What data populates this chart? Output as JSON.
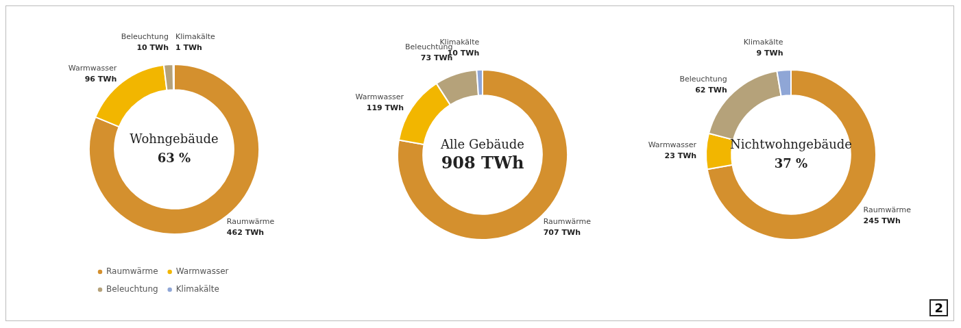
{
  "chart_data": [
    {
      "type": "donut",
      "title": "Wohngebäude",
      "subtitle": "63 %",
      "categories": [
        "Raumwärme",
        "Warmwasser",
        "Beleuchtung",
        "Klimakälte"
      ],
      "values": [
        462,
        96,
        10,
        1
      ],
      "value_labels": [
        "462 TWh",
        "96 TWh",
        "10 TWh",
        "1 TWh"
      ],
      "colors": [
        "#d4902e",
        "#f2b600",
        "#b5a27a",
        "#8fa6d6"
      ],
      "legend": "bottom"
    },
    {
      "type": "donut",
      "title": "Alle Gebäude",
      "subtitle": "908 TWh",
      "categories": [
        "Raumwärme",
        "Warmwasser",
        "Beleuchtung",
        "Klimakälte"
      ],
      "values": [
        707,
        119,
        73,
        10
      ],
      "value_labels": [
        "707 TWh",
        "119 TWh",
        "73 TWh",
        "10 TWh"
      ],
      "colors": [
        "#d4902e",
        "#f2b600",
        "#b5a27a",
        "#8fa6d6"
      ]
    },
    {
      "type": "donut",
      "title": "Nichtwohngebäude",
      "subtitle": "37 %",
      "categories": [
        "Raumwärme",
        "Warmwasser",
        "Beleuchtung",
        "Klimakälte"
      ],
      "values": [
        245,
        23,
        62,
        9
      ],
      "value_labels": [
        "245 TWh",
        "23 TWh",
        "62 TWh",
        "9 TWh"
      ],
      "colors": [
        "#d4902e",
        "#f2b600",
        "#b5a27a",
        "#8fa6d6"
      ],
      "annotations": [
        "2"
      ]
    }
  ]
}
